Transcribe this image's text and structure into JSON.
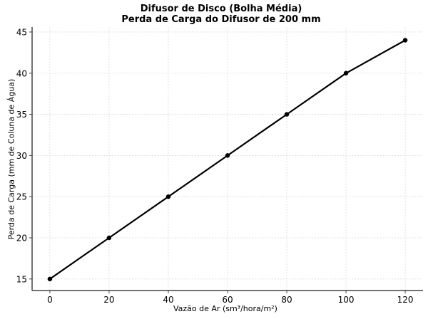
{
  "chart_data": {
    "type": "line",
    "title": "Difusor de Disco (Bolha Média)\nPerda de Carga do Difusor de 200 mm",
    "title_lines": [
      "Difusor de Disco (Bolha Média)",
      "Perda de Carga do Difusor de 200 mm"
    ],
    "xlabel": "Vazão de Ar (sm³/hora/m²)",
    "ylabel": "Perda de Carga (mm de Coluna de Água)",
    "x": [
      0,
      20,
      40,
      60,
      80,
      100,
      120
    ],
    "series": [
      {
        "name": "Perda de Carga",
        "values": [
          15,
          20,
          25,
          30,
          35,
          40,
          44
        ],
        "color": "#000000",
        "marker": "circle"
      }
    ],
    "xticks": [
      0,
      20,
      40,
      60,
      80,
      100,
      120
    ],
    "yticks": [
      15,
      20,
      25,
      30,
      35,
      40,
      45
    ],
    "xlim": [
      -6,
      126
    ],
    "ylim": [
      13.6,
      45.6
    ],
    "grid": true,
    "legend": null
  }
}
